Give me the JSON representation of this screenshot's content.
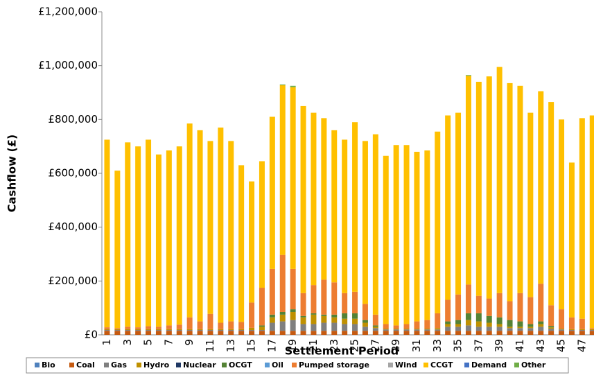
{
  "chart_data": {
    "type": "stacked-bar",
    "x_label": "Settlement Period",
    "y_label": "Cashflow (£)",
    "categories": [
      "1",
      null,
      "3",
      null,
      "5",
      null,
      "7",
      null,
      "9",
      null,
      "11",
      null,
      "13",
      null,
      "15",
      null,
      "17",
      null,
      "19",
      null,
      "21",
      null,
      "23",
      null,
      "25",
      null,
      "27",
      null,
      "29",
      null,
      "31",
      null,
      "33",
      null,
      "35",
      null,
      "37",
      null,
      "39",
      null,
      "41",
      null,
      "43",
      null,
      "45",
      null,
      "47",
      null
    ],
    "ylim": [
      0,
      1200000
    ],
    "yticks": [
      {
        "value": 0,
        "label": "£0"
      },
      {
        "value": 200000,
        "label": "£200,000"
      },
      {
        "value": 400000,
        "label": "£400,000"
      },
      {
        "value": 600000,
        "label": "£600,000"
      },
      {
        "value": 800000,
        "label": "£800,000"
      },
      {
        "value": 1000000,
        "label": "£1,000,000"
      },
      {
        "value": 1200000,
        "label": "£1,200,000"
      }
    ],
    "legend_position": "bottom",
    "series": [
      {
        "name": "Bio",
        "color": "#4f81bd",
        "values": [
          0,
          0,
          0,
          0,
          0,
          0,
          0,
          0,
          0,
          0,
          0,
          0,
          0,
          0,
          0,
          0,
          0,
          0,
          0,
          0,
          0,
          0,
          0,
          0,
          0,
          0,
          0,
          0,
          0,
          0,
          0,
          0,
          0,
          0,
          0,
          0,
          0,
          0,
          0,
          0,
          0,
          0,
          0,
          0,
          0,
          0,
          0,
          0
        ]
      },
      {
        "name": "Coal",
        "color": "#c55a11",
        "values": [
          15000,
          15000,
          15000,
          15000,
          15000,
          15000,
          15000,
          15000,
          15000,
          15000,
          15000,
          15000,
          15000,
          15000,
          15000,
          15000,
          15000,
          15000,
          15000,
          15000,
          15000,
          15000,
          15000,
          15000,
          15000,
          15000,
          15000,
          15000,
          15000,
          15000,
          15000,
          15000,
          15000,
          15000,
          15000,
          15000,
          15000,
          15000,
          15000,
          15000,
          15000,
          15000,
          15000,
          15000,
          15000,
          15000,
          15000,
          15000
        ]
      },
      {
        "name": "Gas",
        "color": "#7f7f7f",
        "values": [
          3000,
          3000,
          3000,
          3000,
          3000,
          3000,
          3000,
          3000,
          3000,
          3000,
          3000,
          3000,
          3000,
          3000,
          3000,
          3000,
          30000,
          35000,
          40000,
          25000,
          25000,
          30000,
          30000,
          25000,
          25000,
          15000,
          10000,
          5000,
          5000,
          5000,
          5000,
          5000,
          5000,
          15000,
          15000,
          20000,
          15000,
          15000,
          15000,
          10000,
          10000,
          10000,
          15000,
          8000,
          5000,
          3000,
          3000,
          3000
        ]
      },
      {
        "name": "Hydro",
        "color": "#bf9000",
        "values": [
          3000,
          3000,
          3000,
          3000,
          3000,
          3000,
          3000,
          3000,
          3000,
          3000,
          3000,
          3000,
          3000,
          3000,
          8000,
          12000,
          20000,
          25000,
          30000,
          25000,
          35000,
          25000,
          20000,
          20000,
          20000,
          15000,
          5000,
          3000,
          3000,
          3000,
          3000,
          3000,
          5000,
          10000,
          10000,
          20000,
          20000,
          15000,
          10000,
          5000,
          5000,
          5000,
          10000,
          5000,
          3000,
          3000,
          3000,
          3000
        ]
      },
      {
        "name": "Nuclear",
        "color": "#1f3864",
        "values": [
          0,
          0,
          0,
          0,
          0,
          0,
          0,
          0,
          0,
          0,
          0,
          0,
          0,
          0,
          0,
          0,
          0,
          0,
          0,
          0,
          0,
          0,
          0,
          0,
          0,
          0,
          0,
          0,
          0,
          0,
          0,
          0,
          0,
          0,
          0,
          0,
          0,
          0,
          0,
          0,
          0,
          0,
          0,
          0,
          0,
          0,
          0,
          0
        ]
      },
      {
        "name": "OCGT",
        "color": "#548235",
        "values": [
          0,
          0,
          0,
          0,
          0,
          0,
          0,
          0,
          0,
          0,
          0,
          0,
          0,
          0,
          0,
          5000,
          10000,
          10000,
          10000,
          5000,
          5000,
          5000,
          10000,
          20000,
          20000,
          10000,
          5000,
          0,
          0,
          0,
          0,
          0,
          0,
          10000,
          15000,
          25000,
          30000,
          25000,
          25000,
          25000,
          20000,
          10000,
          10000,
          5000,
          0,
          0,
          0,
          0
        ]
      },
      {
        "name": "Oil",
        "color": "#5b9bd5",
        "values": [
          0,
          0,
          0,
          0,
          0,
          0,
          0,
          0,
          0,
          0,
          0,
          0,
          0,
          0,
          0,
          0,
          0,
          0,
          0,
          0,
          0,
          0,
          0,
          0,
          0,
          0,
          0,
          0,
          0,
          0,
          0,
          0,
          0,
          0,
          0,
          0,
          0,
          0,
          0,
          0,
          0,
          0,
          0,
          0,
          0,
          0,
          0,
          0
        ]
      },
      {
        "name": "Pumped storage",
        "color": "#ed7d31",
        "values": [
          7000,
          4000,
          9000,
          7000,
          11000,
          9000,
          14000,
          17000,
          44000,
          29000,
          57000,
          24000,
          29000,
          27000,
          94000,
          140000,
          170000,
          212000,
          150000,
          85000,
          105000,
          130000,
          120000,
          75000,
          80000,
          60000,
          40000,
          17000,
          12000,
          17000,
          27000,
          32000,
          55000,
          80000,
          95000,
          107000,
          65000,
          65000,
          90000,
          70000,
          105000,
          100000,
          140000,
          77000,
          72000,
          44000,
          39000,
          4000
        ]
      },
      {
        "name": "Wind",
        "color": "#a5a5a5",
        "values": [
          0,
          0,
          0,
          0,
          0,
          0,
          0,
          0,
          0,
          0,
          0,
          0,
          0,
          0,
          0,
          0,
          0,
          0,
          0,
          0,
          0,
          0,
          0,
          0,
          0,
          0,
          0,
          0,
          0,
          0,
          0,
          0,
          0,
          0,
          0,
          0,
          0,
          0,
          0,
          0,
          0,
          0,
          0,
          0,
          0,
          0,
          0,
          0
        ]
      },
      {
        "name": "CCGT",
        "color": "#ffc000",
        "values": [
          697000,
          585000,
          685000,
          672000,
          693000,
          640000,
          650000,
          662000,
          720000,
          710000,
          642000,
          725000,
          670000,
          582000,
          450000,
          470000,
          565000,
          630000,
          675000,
          695000,
          640000,
          600000,
          565000,
          570000,
          630000,
          605000,
          670000,
          625000,
          670000,
          665000,
          630000,
          630000,
          675000,
          685000,
          675000,
          775000,
          795000,
          825000,
          840000,
          810000,
          770000,
          685000,
          715000,
          755000,
          705000,
          575000,
          745000,
          790000
        ]
      },
      {
        "name": "Demand",
        "color": "#4472c4",
        "values": [
          0,
          0,
          0,
          0,
          0,
          0,
          0,
          0,
          0,
          0,
          0,
          0,
          0,
          0,
          0,
          0,
          0,
          0,
          0,
          0,
          0,
          0,
          0,
          0,
          0,
          0,
          0,
          0,
          0,
          0,
          0,
          0,
          0,
          0,
          0,
          0,
          0,
          0,
          0,
          0,
          0,
          0,
          0,
          0,
          0,
          0,
          0,
          0
        ]
      },
      {
        "name": "Other",
        "color": "#70ad47",
        "values": [
          0,
          0,
          0,
          0,
          0,
          0,
          0,
          0,
          0,
          0,
          0,
          0,
          0,
          0,
          0,
          0,
          0,
          3000,
          5000,
          0,
          0,
          0,
          0,
          0,
          0,
          0,
          0,
          0,
          0,
          0,
          0,
          0,
          0,
          0,
          0,
          3000,
          0,
          0,
          0,
          0,
          0,
          0,
          0,
          0,
          0,
          0,
          0,
          0
        ]
      }
    ]
  }
}
